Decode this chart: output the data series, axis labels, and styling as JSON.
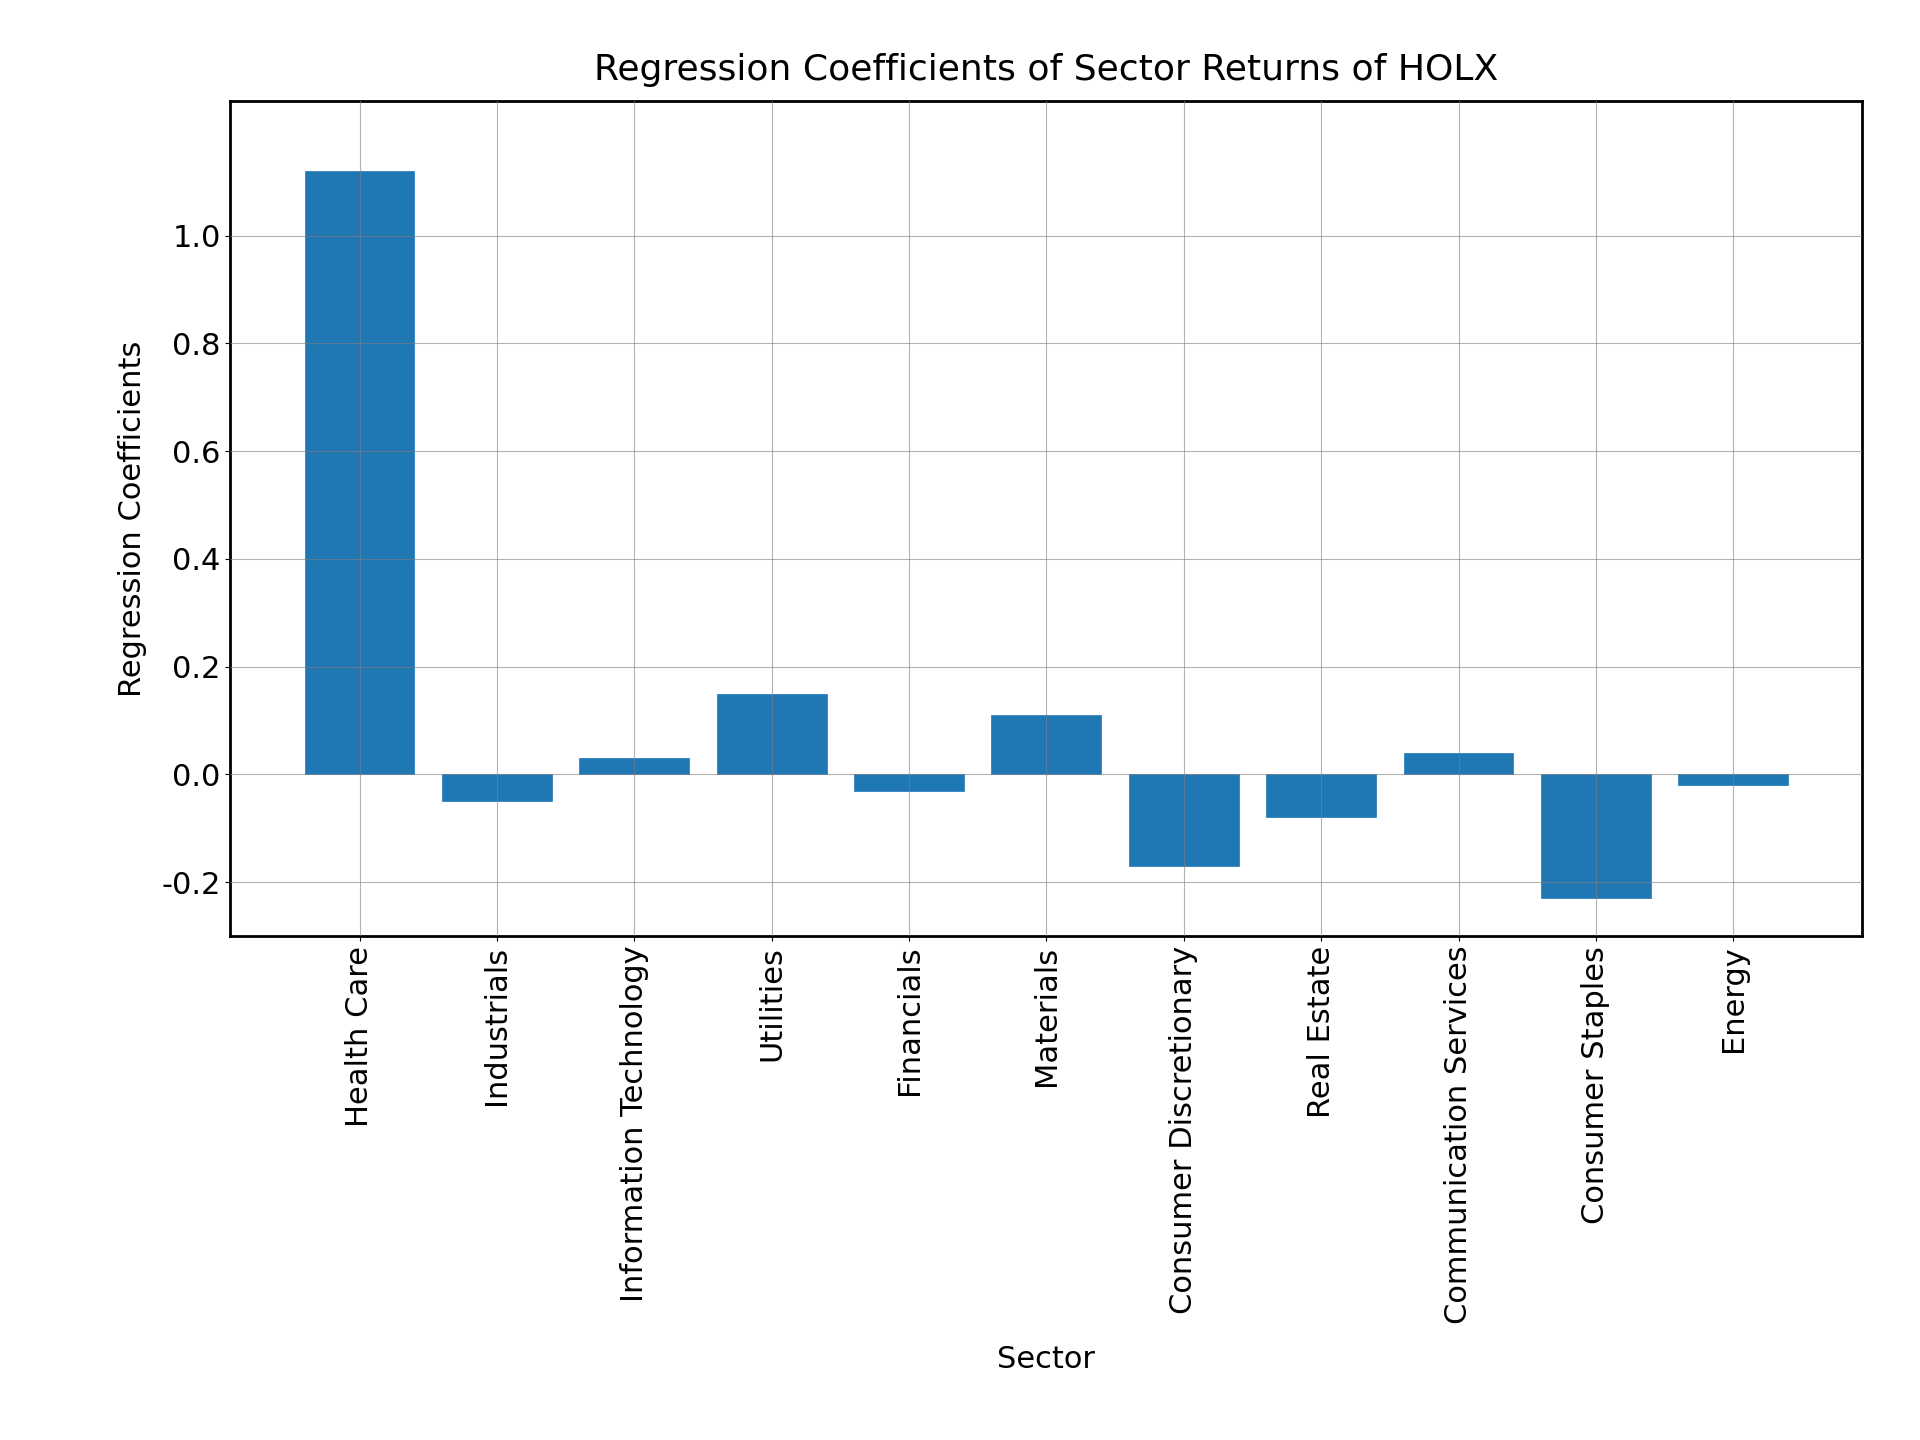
{
  "title": "Regression Coefficients of Sector Returns of HOLX",
  "xlabel": "Sector",
  "ylabel": "Regression Coefficients",
  "categories": [
    "Health Care",
    "Industrials",
    "Information Technology",
    "Utilities",
    "Financials",
    "Materials",
    "Consumer Discretionary",
    "Real Estate",
    "Communication Services",
    "Consumer Staples",
    "Energy"
  ],
  "values": [
    1.12,
    -0.05,
    0.03,
    0.15,
    -0.03,
    0.11,
    -0.17,
    -0.08,
    0.04,
    -0.23,
    -0.02
  ],
  "bar_color": "#1f77b4",
  "ylim": [
    -0.3,
    1.25
  ],
  "yticks": [
    -0.2,
    0.0,
    0.2,
    0.4,
    0.6,
    0.8,
    1.0
  ],
  "grid": true,
  "title_fontsize": 26,
  "label_fontsize": 22,
  "tick_fontsize": 22,
  "xtick_rotation": 90,
  "background_color": "#ffffff",
  "figure_size": [
    19.2,
    14.4
  ],
  "dpi": 100
}
